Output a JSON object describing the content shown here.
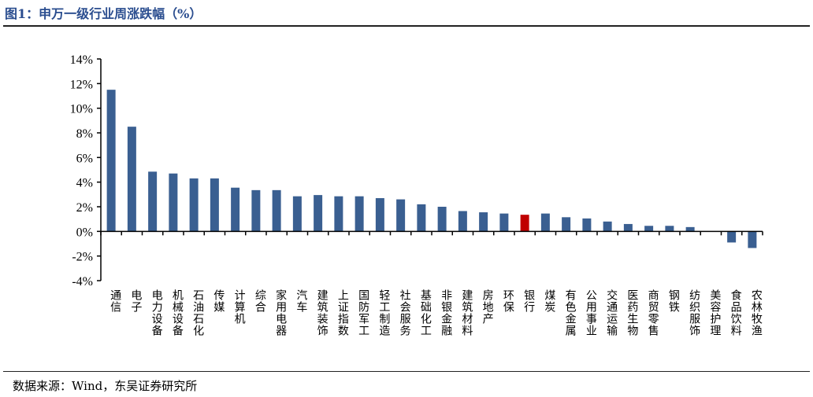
{
  "title": "图1：申万一级行业周涨跌幅（%）",
  "source": "数据来源：Wind，东吴证券研究所",
  "colors": {
    "bar": "#3a5f91",
    "highlight": "#c00000"
  },
  "chart_data": {
    "type": "bar",
    "title": "申万一级行业周涨跌幅（%）",
    "xlabel": "",
    "ylabel": "",
    "ylim": [
      -4,
      14
    ],
    "yticks": [
      -4,
      -2,
      0,
      2,
      4,
      6,
      8,
      10,
      12,
      14
    ],
    "ytick_labels": [
      "-4%",
      "-2%",
      "0%",
      "2%",
      "4%",
      "6%",
      "8%",
      "10%",
      "12%",
      "14%"
    ],
    "grid": false,
    "highlight": "银行",
    "categories": [
      "通信",
      "电子",
      "电力设备",
      "机械设备",
      "石油石化",
      "传媒",
      "计算机",
      "综合",
      "家用电器",
      "汽车",
      "建筑装饰",
      "上证指数",
      "国防军工",
      "轻工制造",
      "社会服务",
      "基础化工",
      "非银金融",
      "建筑材料",
      "房地产",
      "环保",
      "银行",
      "煤炭",
      "有色金属",
      "公用事业",
      "交通运输",
      "医药生物",
      "商贸零售",
      "钢铁",
      "纺织服饰",
      "美容护理",
      "食品饮料",
      "农林牧渔"
    ],
    "values": [
      11.5,
      8.5,
      4.85,
      4.7,
      4.3,
      4.3,
      3.55,
      3.35,
      3.35,
      2.85,
      2.95,
      2.85,
      2.85,
      2.7,
      2.6,
      2.2,
      2.0,
      1.65,
      1.55,
      1.45,
      1.35,
      1.45,
      1.15,
      1.05,
      0.8,
      0.6,
      0.45,
      0.45,
      0.35,
      0.02,
      -0.9,
      -1.35
    ]
  }
}
